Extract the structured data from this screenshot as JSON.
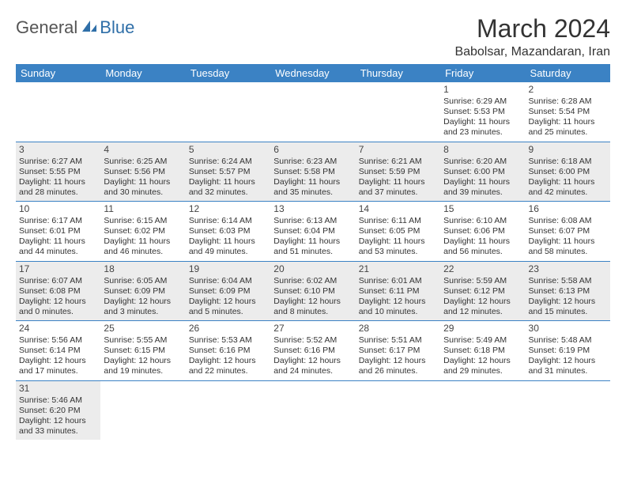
{
  "logo": {
    "part1": "General",
    "part2": "Blue"
  },
  "title": "March 2024",
  "location": "Babolsar, Mazandaran, Iran",
  "colors": {
    "header_bg": "#3b82c4",
    "header_fg": "#ffffff",
    "row_alt_bg": "#ececec",
    "border": "#3b82c4",
    "logo_accent": "#2f6fa8"
  },
  "weekdays": [
    "Sunday",
    "Monday",
    "Tuesday",
    "Wednesday",
    "Thursday",
    "Friday",
    "Saturday"
  ],
  "weeks": [
    [
      null,
      null,
      null,
      null,
      null,
      {
        "n": "1",
        "sr": "Sunrise: 6:29 AM",
        "ss": "Sunset: 5:53 PM",
        "dl": "Daylight: 11 hours and 23 minutes."
      },
      {
        "n": "2",
        "sr": "Sunrise: 6:28 AM",
        "ss": "Sunset: 5:54 PM",
        "dl": "Daylight: 11 hours and 25 minutes."
      }
    ],
    [
      {
        "n": "3",
        "sr": "Sunrise: 6:27 AM",
        "ss": "Sunset: 5:55 PM",
        "dl": "Daylight: 11 hours and 28 minutes."
      },
      {
        "n": "4",
        "sr": "Sunrise: 6:25 AM",
        "ss": "Sunset: 5:56 PM",
        "dl": "Daylight: 11 hours and 30 minutes."
      },
      {
        "n": "5",
        "sr": "Sunrise: 6:24 AM",
        "ss": "Sunset: 5:57 PM",
        "dl": "Daylight: 11 hours and 32 minutes."
      },
      {
        "n": "6",
        "sr": "Sunrise: 6:23 AM",
        "ss": "Sunset: 5:58 PM",
        "dl": "Daylight: 11 hours and 35 minutes."
      },
      {
        "n": "7",
        "sr": "Sunrise: 6:21 AM",
        "ss": "Sunset: 5:59 PM",
        "dl": "Daylight: 11 hours and 37 minutes."
      },
      {
        "n": "8",
        "sr": "Sunrise: 6:20 AM",
        "ss": "Sunset: 6:00 PM",
        "dl": "Daylight: 11 hours and 39 minutes."
      },
      {
        "n": "9",
        "sr": "Sunrise: 6:18 AM",
        "ss": "Sunset: 6:00 PM",
        "dl": "Daylight: 11 hours and 42 minutes."
      }
    ],
    [
      {
        "n": "10",
        "sr": "Sunrise: 6:17 AM",
        "ss": "Sunset: 6:01 PM",
        "dl": "Daylight: 11 hours and 44 minutes."
      },
      {
        "n": "11",
        "sr": "Sunrise: 6:15 AM",
        "ss": "Sunset: 6:02 PM",
        "dl": "Daylight: 11 hours and 46 minutes."
      },
      {
        "n": "12",
        "sr": "Sunrise: 6:14 AM",
        "ss": "Sunset: 6:03 PM",
        "dl": "Daylight: 11 hours and 49 minutes."
      },
      {
        "n": "13",
        "sr": "Sunrise: 6:13 AM",
        "ss": "Sunset: 6:04 PM",
        "dl": "Daylight: 11 hours and 51 minutes."
      },
      {
        "n": "14",
        "sr": "Sunrise: 6:11 AM",
        "ss": "Sunset: 6:05 PM",
        "dl": "Daylight: 11 hours and 53 minutes."
      },
      {
        "n": "15",
        "sr": "Sunrise: 6:10 AM",
        "ss": "Sunset: 6:06 PM",
        "dl": "Daylight: 11 hours and 56 minutes."
      },
      {
        "n": "16",
        "sr": "Sunrise: 6:08 AM",
        "ss": "Sunset: 6:07 PM",
        "dl": "Daylight: 11 hours and 58 minutes."
      }
    ],
    [
      {
        "n": "17",
        "sr": "Sunrise: 6:07 AM",
        "ss": "Sunset: 6:08 PM",
        "dl": "Daylight: 12 hours and 0 minutes."
      },
      {
        "n": "18",
        "sr": "Sunrise: 6:05 AM",
        "ss": "Sunset: 6:09 PM",
        "dl": "Daylight: 12 hours and 3 minutes."
      },
      {
        "n": "19",
        "sr": "Sunrise: 6:04 AM",
        "ss": "Sunset: 6:09 PM",
        "dl": "Daylight: 12 hours and 5 minutes."
      },
      {
        "n": "20",
        "sr": "Sunrise: 6:02 AM",
        "ss": "Sunset: 6:10 PM",
        "dl": "Daylight: 12 hours and 8 minutes."
      },
      {
        "n": "21",
        "sr": "Sunrise: 6:01 AM",
        "ss": "Sunset: 6:11 PM",
        "dl": "Daylight: 12 hours and 10 minutes."
      },
      {
        "n": "22",
        "sr": "Sunrise: 5:59 AM",
        "ss": "Sunset: 6:12 PM",
        "dl": "Daylight: 12 hours and 12 minutes."
      },
      {
        "n": "23",
        "sr": "Sunrise: 5:58 AM",
        "ss": "Sunset: 6:13 PM",
        "dl": "Daylight: 12 hours and 15 minutes."
      }
    ],
    [
      {
        "n": "24",
        "sr": "Sunrise: 5:56 AM",
        "ss": "Sunset: 6:14 PM",
        "dl": "Daylight: 12 hours and 17 minutes."
      },
      {
        "n": "25",
        "sr": "Sunrise: 5:55 AM",
        "ss": "Sunset: 6:15 PM",
        "dl": "Daylight: 12 hours and 19 minutes."
      },
      {
        "n": "26",
        "sr": "Sunrise: 5:53 AM",
        "ss": "Sunset: 6:16 PM",
        "dl": "Daylight: 12 hours and 22 minutes."
      },
      {
        "n": "27",
        "sr": "Sunrise: 5:52 AM",
        "ss": "Sunset: 6:16 PM",
        "dl": "Daylight: 12 hours and 24 minutes."
      },
      {
        "n": "28",
        "sr": "Sunrise: 5:51 AM",
        "ss": "Sunset: 6:17 PM",
        "dl": "Daylight: 12 hours and 26 minutes."
      },
      {
        "n": "29",
        "sr": "Sunrise: 5:49 AM",
        "ss": "Sunset: 6:18 PM",
        "dl": "Daylight: 12 hours and 29 minutes."
      },
      {
        "n": "30",
        "sr": "Sunrise: 5:48 AM",
        "ss": "Sunset: 6:19 PM",
        "dl": "Daylight: 12 hours and 31 minutes."
      }
    ],
    [
      {
        "n": "31",
        "sr": "Sunrise: 5:46 AM",
        "ss": "Sunset: 6:20 PM",
        "dl": "Daylight: 12 hours and 33 minutes."
      },
      null,
      null,
      null,
      null,
      null,
      null
    ]
  ]
}
